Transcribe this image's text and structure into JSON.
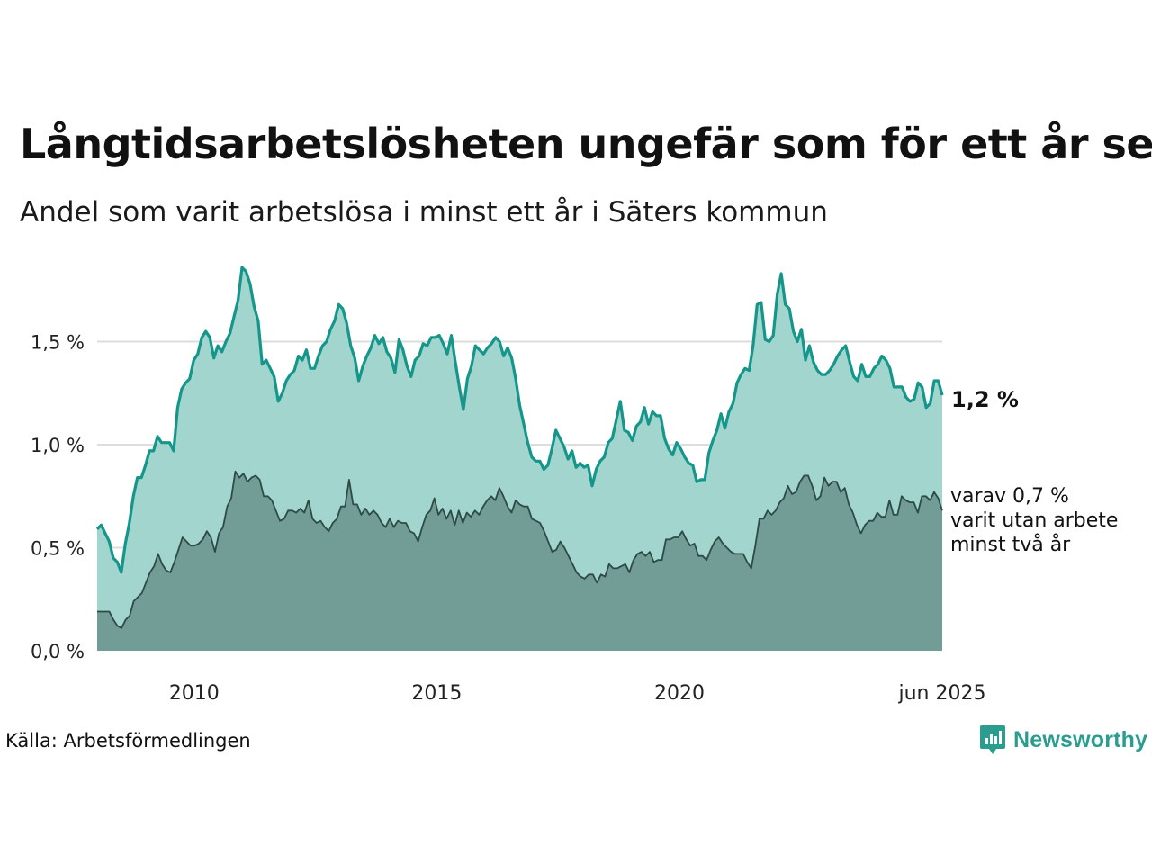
{
  "title": "Långtidsarbetslösheten ungefär som för ett år sen",
  "subtitle": "Andel som varit arbetslösa i minst ett år i Säters kommun",
  "source": "Källa: Arbetsförmedlingen",
  "brand": {
    "name": "Newsworthy",
    "icon": "newsworthy-logo-icon",
    "color": "#2a9d8f"
  },
  "annotations": {
    "main_value": "1,2 %",
    "sub_lines": [
      "varav 0,7 %",
      "varit utan arbete",
      "minst två år"
    ]
  },
  "colors": {
    "series1_line": "#14968a",
    "series1_fill": "#a3d5cf",
    "series2_line": "#2e4a44",
    "series2_fill": "#729c96",
    "grid": "#dddddd"
  },
  "chart_data": {
    "type": "area",
    "title": "Långtidsarbetslösheten ungefär som för ett år sen",
    "subtitle": "Andel som varit arbetslösa i minst ett år i Säters kommun",
    "xlabel": "",
    "ylabel": "",
    "x_start": "2008-01",
    "x_end": "2025-06",
    "frequency": "monthly",
    "xticks": [
      {
        "x": "2010-01",
        "label": "2010"
      },
      {
        "x": "2015-01",
        "label": "2015"
      },
      {
        "x": "2020-01",
        "label": "2020"
      },
      {
        "x": "2025-06",
        "label": "jun 2025"
      }
    ],
    "ylim": [
      0,
      1.85
    ],
    "yticks": [
      {
        "value": 0,
        "label": "0,0 %"
      },
      {
        "value": 0.5,
        "label": "0,5 %"
      },
      {
        "value": 1.0,
        "label": "1,0 %"
      },
      {
        "value": 1.5,
        "label": "1,5 %"
      }
    ],
    "grid": true,
    "series": [
      {
        "name": "varit arbetslösa i minst ett år",
        "values": [
          0.59,
          0.61,
          0.57,
          0.53,
          0.45,
          0.43,
          0.38,
          0.52,
          0.62,
          0.75,
          0.84,
          0.84,
          0.9,
          0.97,
          0.97,
          1.04,
          1.01,
          1.01,
          1.01,
          0.97,
          1.18,
          1.27,
          1.3,
          1.32,
          1.41,
          1.44,
          1.52,
          1.55,
          1.52,
          1.42,
          1.48,
          1.45,
          1.5,
          1.54,
          1.62,
          1.7,
          1.86,
          1.84,
          1.78,
          1.67,
          1.6,
          1.39,
          1.41,
          1.37,
          1.33,
          1.21,
          1.25,
          1.31,
          1.34,
          1.36,
          1.43,
          1.41,
          1.46,
          1.37,
          1.37,
          1.43,
          1.48,
          1.5,
          1.56,
          1.6,
          1.68,
          1.66,
          1.59,
          1.48,
          1.42,
          1.31,
          1.38,
          1.43,
          1.47,
          1.53,
          1.49,
          1.52,
          1.45,
          1.42,
          1.35,
          1.51,
          1.46,
          1.38,
          1.33,
          1.41,
          1.43,
          1.49,
          1.48,
          1.52,
          1.52,
          1.53,
          1.49,
          1.44,
          1.53,
          1.4,
          1.28,
          1.17,
          1.32,
          1.38,
          1.48,
          1.46,
          1.44,
          1.47,
          1.49,
          1.52,
          1.5,
          1.43,
          1.47,
          1.42,
          1.32,
          1.19,
          1.1,
          1.01,
          0.94,
          0.92,
          0.92,
          0.88,
          0.9,
          0.98,
          1.07,
          1.03,
          0.99,
          0.93,
          0.97,
          0.89,
          0.91,
          0.89,
          0.9,
          0.8,
          0.88,
          0.92,
          0.94,
          1.01,
          1.03,
          1.12,
          1.21,
          1.07,
          1.06,
          1.02,
          1.09,
          1.11,
          1.18,
          1.1,
          1.16,
          1.14,
          1.14,
          1.03,
          0.98,
          0.95,
          1.01,
          0.98,
          0.94,
          0.91,
          0.9,
          0.82,
          0.83,
          0.83,
          0.96,
          1.02,
          1.07,
          1.15,
          1.08,
          1.16,
          1.2,
          1.3,
          1.34,
          1.37,
          1.36,
          1.48,
          1.68,
          1.69,
          1.51,
          1.5,
          1.53,
          1.73,
          1.83,
          1.68,
          1.66,
          1.55,
          1.5,
          1.56,
          1.41,
          1.48,
          1.4,
          1.36,
          1.34,
          1.34,
          1.36,
          1.39,
          1.43,
          1.46,
          1.48,
          1.4,
          1.33,
          1.31,
          1.39,
          1.33,
          1.33,
          1.37,
          1.39,
          1.43,
          1.41,
          1.37,
          1.28,
          1.28,
          1.28,
          1.23,
          1.21,
          1.22,
          1.3,
          1.28,
          1.18,
          1.2,
          1.31,
          1.31,
          1.24
        ]
      },
      {
        "name": "varit utan arbete minst två år",
        "values": [
          0.19,
          0.19,
          0.19,
          0.19,
          0.15,
          0.12,
          0.11,
          0.15,
          0.17,
          0.24,
          0.26,
          0.28,
          0.33,
          0.38,
          0.41,
          0.47,
          0.42,
          0.39,
          0.38,
          0.43,
          0.49,
          0.55,
          0.53,
          0.51,
          0.51,
          0.52,
          0.54,
          0.58,
          0.55,
          0.48,
          0.57,
          0.6,
          0.7,
          0.74,
          0.87,
          0.84,
          0.86,
          0.82,
          0.84,
          0.85,
          0.83,
          0.75,
          0.75,
          0.73,
          0.68,
          0.63,
          0.64,
          0.68,
          0.68,
          0.67,
          0.69,
          0.67,
          0.73,
          0.64,
          0.62,
          0.63,
          0.6,
          0.58,
          0.62,
          0.64,
          0.7,
          0.7,
          0.83,
          0.71,
          0.71,
          0.66,
          0.69,
          0.66,
          0.68,
          0.66,
          0.62,
          0.6,
          0.64,
          0.6,
          0.63,
          0.62,
          0.62,
          0.58,
          0.57,
          0.53,
          0.6,
          0.66,
          0.68,
          0.74,
          0.66,
          0.69,
          0.64,
          0.68,
          0.61,
          0.68,
          0.62,
          0.67,
          0.65,
          0.68,
          0.66,
          0.7,
          0.73,
          0.75,
          0.73,
          0.79,
          0.75,
          0.7,
          0.67,
          0.73,
          0.71,
          0.7,
          0.7,
          0.64,
          0.63,
          0.62,
          0.58,
          0.53,
          0.48,
          0.49,
          0.53,
          0.5,
          0.46,
          0.42,
          0.38,
          0.36,
          0.35,
          0.37,
          0.37,
          0.33,
          0.37,
          0.36,
          0.42,
          0.4,
          0.4,
          0.41,
          0.42,
          0.38,
          0.44,
          0.47,
          0.48,
          0.46,
          0.48,
          0.43,
          0.44,
          0.44,
          0.54,
          0.54,
          0.55,
          0.55,
          0.58,
          0.54,
          0.51,
          0.52,
          0.46,
          0.46,
          0.44,
          0.49,
          0.53,
          0.55,
          0.52,
          0.5,
          0.48,
          0.47,
          0.47,
          0.47,
          0.43,
          0.4,
          0.51,
          0.64,
          0.64,
          0.68,
          0.66,
          0.68,
          0.72,
          0.74,
          0.8,
          0.76,
          0.77,
          0.82,
          0.85,
          0.85,
          0.8,
          0.73,
          0.75,
          0.84,
          0.8,
          0.82,
          0.82,
          0.77,
          0.79,
          0.71,
          0.67,
          0.61,
          0.57,
          0.61,
          0.63,
          0.63,
          0.67,
          0.65,
          0.65,
          0.73,
          0.66,
          0.66,
          0.75,
          0.73,
          0.72,
          0.72,
          0.67,
          0.75,
          0.75,
          0.73,
          0.77,
          0.74,
          0.68
        ]
      }
    ]
  }
}
